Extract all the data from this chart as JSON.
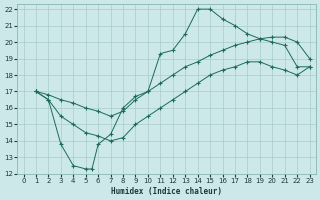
{
  "xlabel": "Humidex (Indice chaleur)",
  "bg_color": "#cde8e8",
  "grid_color": "#aacccc",
  "line_color": "#1a6b5a",
  "xlim": [
    -0.5,
    23.5
  ],
  "ylim": [
    12,
    22.3
  ],
  "xticks": [
    0,
    1,
    2,
    3,
    4,
    5,
    6,
    7,
    8,
    9,
    10,
    11,
    12,
    13,
    14,
    15,
    16,
    17,
    18,
    19,
    20,
    21,
    22,
    23
  ],
  "yticks": [
    12,
    13,
    14,
    15,
    16,
    17,
    18,
    19,
    20,
    21,
    22
  ],
  "line1_x": [
    1,
    2,
    3,
    4,
    5,
    6,
    7,
    8,
    9,
    10,
    11,
    12,
    13,
    14,
    15,
    16,
    17,
    18,
    19,
    20,
    21,
    22,
    23
  ],
  "line1_y": [
    17.0,
    16.5,
    15.5,
    15.0,
    14.5,
    14.3,
    14.0,
    14.2,
    15.0,
    15.5,
    16.0,
    16.5,
    17.0,
    17.5,
    18.0,
    18.3,
    18.5,
    18.8,
    18.8,
    18.5,
    18.3,
    18.0,
    18.5
  ],
  "line2_x": [
    1,
    2,
    3,
    4,
    5,
    6,
    7,
    8,
    9,
    10,
    11,
    12,
    13,
    14,
    15,
    16,
    17,
    18,
    19,
    20,
    21,
    22,
    23
  ],
  "line2_y": [
    17.0,
    16.8,
    16.5,
    16.3,
    16.0,
    15.8,
    15.5,
    15.8,
    16.5,
    17.0,
    17.5,
    18.0,
    18.5,
    18.8,
    19.2,
    19.5,
    19.8,
    20.0,
    20.2,
    20.3,
    20.3,
    20.0,
    19.0
  ],
  "line3_x": [
    1,
    2,
    3,
    4,
    5,
    5.5,
    6,
    7,
    8,
    9,
    10,
    11,
    12,
    13,
    14,
    15,
    16,
    17,
    18,
    19,
    20,
    21,
    22,
    23
  ],
  "line3_y": [
    17.0,
    16.5,
    13.8,
    12.5,
    12.3,
    12.3,
    13.8,
    14.4,
    16.0,
    16.7,
    17.0,
    19.3,
    19.5,
    20.5,
    22.0,
    22.0,
    21.4,
    21.0,
    20.5,
    20.2,
    20.0,
    19.8,
    18.5,
    18.5
  ]
}
